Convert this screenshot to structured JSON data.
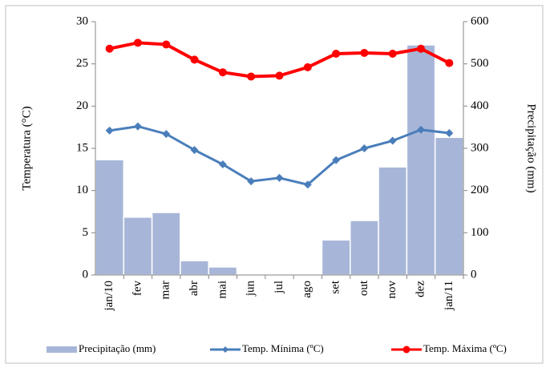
{
  "chart_data": {
    "type": "combo",
    "categories": [
      "jan/10",
      "fev",
      "mar",
      "abr",
      "mai",
      "jun",
      "jul",
      "ago",
      "set",
      "out",
      "nov",
      "dez",
      "jan/11"
    ],
    "ylabel": "Temperatura (°C)",
    "y2label": "Precipitação (mm)",
    "ylim": [
      0,
      30
    ],
    "yticks": [
      0,
      5,
      10,
      15,
      20,
      25,
      30
    ],
    "y2lim": [
      0,
      600
    ],
    "y2ticks": [
      0,
      100,
      200,
      300,
      400,
      500,
      600
    ],
    "series": [
      {
        "name": "Precipitação (mm)",
        "type": "bar",
        "axis": "y2",
        "color": "#a7b6d8",
        "values": [
          273,
          137,
          148,
          34,
          19,
          1,
          0,
          0,
          83,
          129,
          256,
          545,
          326
        ]
      },
      {
        "name": "Temp. Mínima (ºC)",
        "type": "line",
        "marker": "diamond",
        "color": "#4a7ebb",
        "values": [
          17.1,
          17.6,
          16.7,
          14.8,
          13.1,
          11.1,
          11.5,
          10.7,
          13.6,
          15.0,
          15.9,
          17.2,
          16.8
        ]
      },
      {
        "name": "Temp. Máxima (ºC)",
        "type": "line",
        "marker": "circle",
        "color": "#ff0000",
        "values": [
          26.8,
          27.5,
          27.3,
          25.5,
          24.0,
          23.5,
          23.6,
          24.6,
          26.2,
          26.3,
          26.2,
          26.8,
          25.1
        ]
      }
    ]
  }
}
